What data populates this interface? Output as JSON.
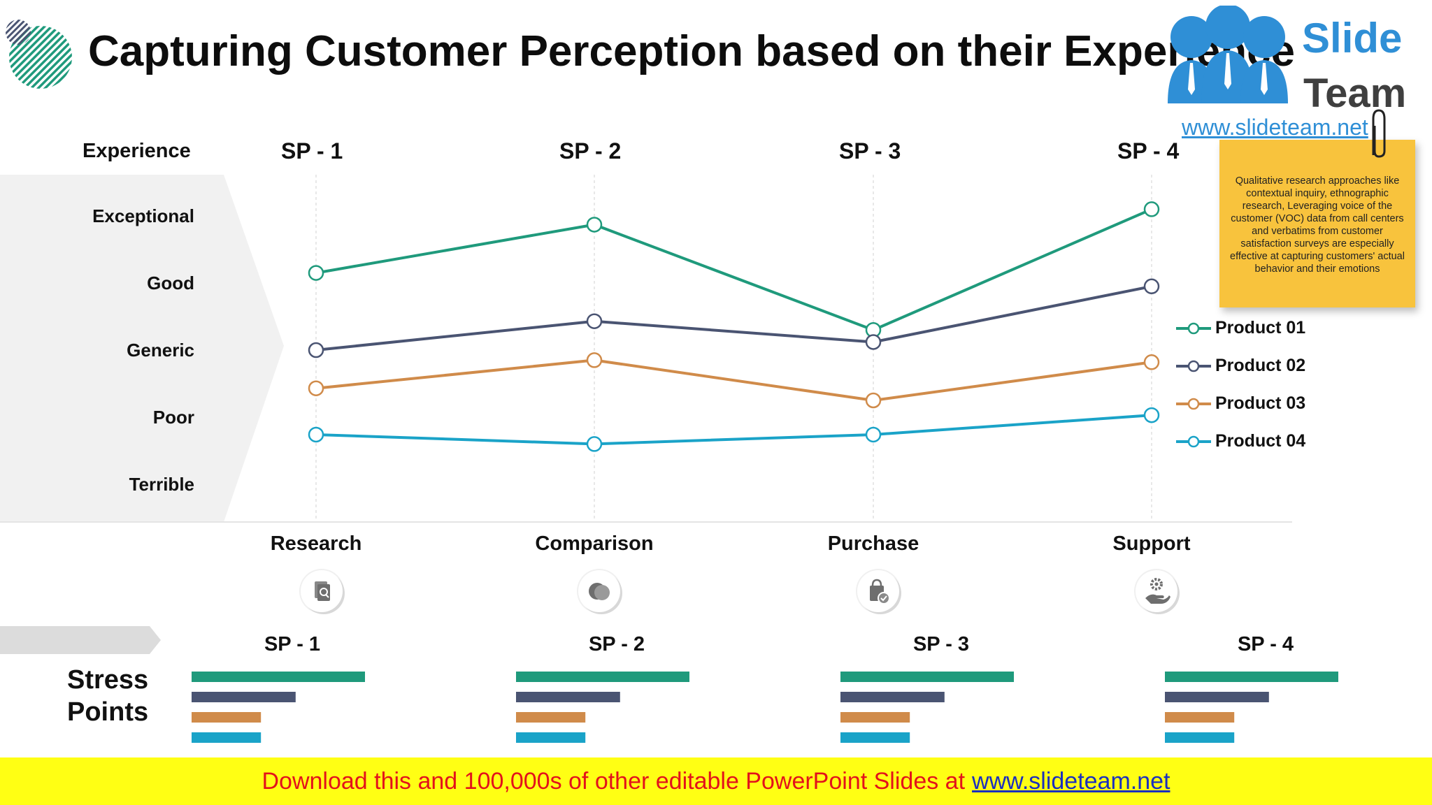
{
  "title": "Capturing Customer Perception based on their Experience",
  "experience_header": "Experience",
  "sp_headers": [
    "SP - 1",
    "SP - 2",
    "SP - 3",
    "SP - 4"
  ],
  "experience_levels": [
    "Exceptional",
    "Good",
    "Generic",
    "Poor",
    "Terrible"
  ],
  "stages": [
    "Research",
    "Comparison",
    "Purchase",
    "Support"
  ],
  "stage_icons": [
    "document-search-icon",
    "pie-chart-icon",
    "shopping-bag-check-icon",
    "hand-gear-icon"
  ],
  "note": {
    "text": "Qualitative research approaches like contextual inquiry, ethnographic research, Leveraging voice of the customer (VOC) data from call centers and verbatims from customer satisfaction surveys are especially effective at capturing customers' actual behavior and their emotions"
  },
  "logo": {
    "line1": "Slide",
    "line2": "Team",
    "url": "www.slideteam.net"
  },
  "stress": {
    "title_line1": "Stress",
    "title_line2": "Points",
    "sp_labels": [
      "SP - 1",
      "SP - 2",
      "SP - 3",
      "SP - 4"
    ]
  },
  "footer": {
    "text": "Download this and 100,000s of other editable PowerPoint Slides at",
    "link": "www.slideteam.net"
  },
  "colors": {
    "product01": "#1f9a7c",
    "product02": "#4a5472",
    "product03": "#d08b4a",
    "product04": "#1aa3c8",
    "band": "#f1f1f1"
  },
  "chart_data": {
    "type": "line",
    "categories": [
      "SP - 1",
      "SP - 2",
      "SP - 3",
      "SP - 4"
    ],
    "y_categories": [
      "Terrible",
      "Poor",
      "Generic",
      "Good",
      "Exceptional"
    ],
    "ylim": [
      0.5,
      5.5
    ],
    "grid": true,
    "legend_position": "right",
    "series": [
      {
        "name": "Product 01",
        "values": [
          4.15,
          4.87,
          3.3,
          5.1
        ]
      },
      {
        "name": "Product 02",
        "values": [
          3.0,
          3.43,
          3.12,
          3.95
        ]
      },
      {
        "name": "Product 03",
        "values": [
          2.43,
          2.85,
          2.25,
          2.82
        ]
      },
      {
        "name": "Product 04",
        "values": [
          1.74,
          1.6,
          1.74,
          2.03
        ]
      }
    ]
  },
  "stress_chart_data": {
    "type": "bar",
    "orientation": "horizontal",
    "categories": [
      "SP - 1",
      "SP - 2",
      "SP - 3",
      "SP - 4"
    ],
    "series": [
      {
        "name": "Product 01",
        "values": [
          1.0,
          1.0,
          1.0,
          1.0
        ]
      },
      {
        "name": "Product 02",
        "values": [
          0.6,
          0.6,
          0.6,
          0.6
        ]
      },
      {
        "name": "Product 03",
        "values": [
          0.4,
          0.4,
          0.4,
          0.4
        ]
      },
      {
        "name": "Product 04",
        "values": [
          0.4,
          0.4,
          0.4,
          0.4
        ]
      }
    ]
  }
}
